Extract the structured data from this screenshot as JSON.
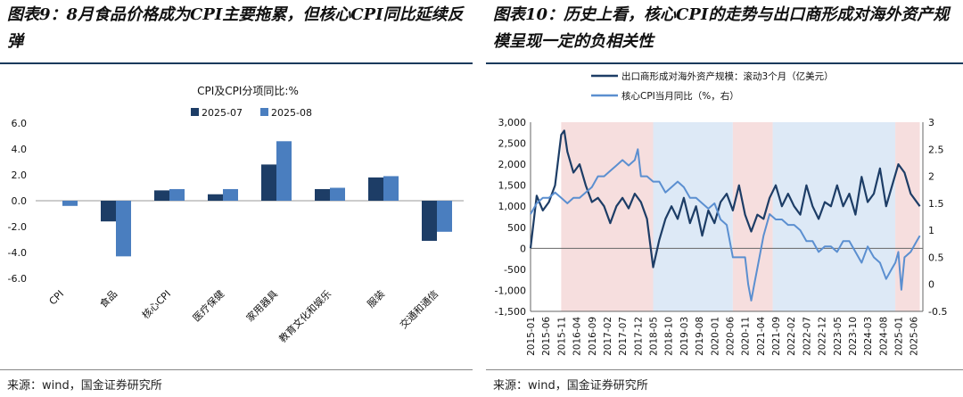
{
  "left": {
    "figure_title": "图表9：8月食品价格成为CPI主要拖累，但核心CPI同比延续反弹",
    "source": "来源：wind，国金证券研究所"
  },
  "right": {
    "figure_title": "图表10：历史上看，核心CPI的走势与出口商形成对海外资产规模呈现一定的负相关性",
    "source": "来源：wind，国金证券研究所"
  },
  "colors": {
    "dark_blue": "#1d3d66",
    "mid_blue": "#4a7ebf",
    "light_blue": "#5b8fd0",
    "pink_band": "#f6dede",
    "blue_band": "#dde9f6",
    "title_rule": "#1a3a5c"
  },
  "chart_data": [
    {
      "type": "bar",
      "title": "CPI及CPI分项同比:%",
      "legend_position": "top",
      "categories": [
        "CPI",
        "食品",
        "核心CPI",
        "医疗保健",
        "家用器具",
        "教育文化和娱乐",
        "服装",
        "交通和通信"
      ],
      "series": [
        {
          "name": "2025-07",
          "color": "#1d3d66",
          "values": [
            0.0,
            -1.6,
            0.8,
            0.5,
            2.8,
            0.9,
            1.8,
            -3.1
          ]
        },
        {
          "name": "2025-08",
          "color": "#4a7ebf",
          "values": [
            -0.4,
            -4.3,
            0.9,
            0.9,
            4.6,
            1.0,
            1.9,
            -2.4
          ]
        }
      ],
      "ylim": [
        -6,
        6
      ],
      "yticks": [
        "6.0",
        "4.0",
        "2.0",
        "0.0",
        "-2.0",
        "-4.0",
        "-6.0"
      ],
      "grid": false
    },
    {
      "type": "line",
      "legend_position": "top-left",
      "legend": [
        "出口商形成对海外资产规模：滚动3个月（亿美元）",
        "核心CPI当月同比（%，右）"
      ],
      "x_ticks": [
        "2015-01",
        "2015-06",
        "2015-11",
        "2016-04",
        "2016-09",
        "2017-02",
        "2017-07",
        "2017-12",
        "2018-05",
        "2018-10",
        "2019-03",
        "2019-08",
        "2020-01",
        "2020-06",
        "2020-11",
        "2021-04",
        "2021-09",
        "2022-02",
        "2022-07",
        "2022-12",
        "2023-05",
        "2023-10",
        "2024-03",
        "2024-08",
        "2025-01",
        "2025-06"
      ],
      "y_left": {
        "ylim": [
          -1500,
          3000
        ],
        "ticks": [
          "3,000",
          "2,500",
          "2,000",
          "1,500",
          "1,000",
          "500",
          "0",
          "-500",
          "-1,000",
          "-1,500"
        ]
      },
      "y_right": {
        "ylim": [
          -0.5,
          3
        ],
        "ticks": [
          "3",
          "2.5",
          "2",
          "1.5",
          "1",
          "0.5",
          "0",
          "-0.5"
        ]
      },
      "shaded_periods": [
        {
          "start": "2015-11",
          "end": "2018-05",
          "color": "pink"
        },
        {
          "start": "2018-05",
          "end": "2020-07",
          "color": "blue"
        },
        {
          "start": "2020-07",
          "end": "2021-08",
          "color": "pink"
        },
        {
          "start": "2021-08",
          "end": "2024-12",
          "color": "blue"
        },
        {
          "start": "2024-12",
          "end": "2025-08",
          "color": "pink"
        }
      ],
      "series": [
        {
          "name": "出口商形成对海外资产规模：滚动3个月（亿美元）",
          "axis": "left",
          "color": "#1d3d66",
          "points": [
            [
              "2015-01",
              0
            ],
            [
              "2015-03",
              1250
            ],
            [
              "2015-05",
              900
            ],
            [
              "2015-07",
              1100
            ],
            [
              "2015-09",
              1500
            ],
            [
              "2015-11",
              2700
            ],
            [
              "2015-12",
              2800
            ],
            [
              "2016-01",
              2300
            ],
            [
              "2016-03",
              1800
            ],
            [
              "2016-05",
              2000
            ],
            [
              "2016-07",
              1500
            ],
            [
              "2016-09",
              1100
            ],
            [
              "2016-11",
              1200
            ],
            [
              "2017-01",
              1000
            ],
            [
              "2017-03",
              600
            ],
            [
              "2017-05",
              1000
            ],
            [
              "2017-07",
              1200
            ],
            [
              "2017-09",
              950
            ],
            [
              "2017-11",
              1300
            ],
            [
              "2018-01",
              1100
            ],
            [
              "2018-03",
              700
            ],
            [
              "2018-05",
              -450
            ],
            [
              "2018-07",
              200
            ],
            [
              "2018-09",
              700
            ],
            [
              "2018-11",
              1000
            ],
            [
              "2019-01",
              700
            ],
            [
              "2019-03",
              1200
            ],
            [
              "2019-05",
              600
            ],
            [
              "2019-07",
              1000
            ],
            [
              "2019-09",
              300
            ],
            [
              "2019-11",
              900
            ],
            [
              "2020-01",
              600
            ],
            [
              "2020-03",
              1100
            ],
            [
              "2020-05",
              1300
            ],
            [
              "2020-07",
              900
            ],
            [
              "2020-09",
              1500
            ],
            [
              "2020-11",
              800
            ],
            [
              "2021-01",
              400
            ],
            [
              "2021-03",
              800
            ],
            [
              "2021-05",
              700
            ],
            [
              "2021-07",
              1200
            ],
            [
              "2021-09",
              1500
            ],
            [
              "2021-11",
              1000
            ],
            [
              "2022-01",
              1300
            ],
            [
              "2022-03",
              1000
            ],
            [
              "2022-05",
              800
            ],
            [
              "2022-07",
              1500
            ],
            [
              "2022-09",
              1000
            ],
            [
              "2022-11",
              700
            ],
            [
              "2023-01",
              1100
            ],
            [
              "2023-03",
              1000
            ],
            [
              "2023-05",
              1500
            ],
            [
              "2023-07",
              1000
            ],
            [
              "2023-09",
              1300
            ],
            [
              "2023-11",
              800
            ],
            [
              "2024-01",
              1700
            ],
            [
              "2024-03",
              1100
            ],
            [
              "2024-05",
              1300
            ],
            [
              "2024-07",
              1900
            ],
            [
              "2024-09",
              1000
            ],
            [
              "2024-11",
              1500
            ],
            [
              "2025-01",
              2000
            ],
            [
              "2025-03",
              1800
            ],
            [
              "2025-05",
              1300
            ],
            [
              "2025-08",
              1000
            ]
          ]
        },
        {
          "name": "核心CPI当月同比（%，右）",
          "axis": "right",
          "color": "#5b8fd0",
          "points": [
            [
              "2015-01",
              1.3
            ],
            [
              "2015-03",
              1.5
            ],
            [
              "2015-05",
              1.6
            ],
            [
              "2015-07",
              1.6
            ],
            [
              "2015-09",
              1.7
            ],
            [
              "2015-11",
              1.6
            ],
            [
              "2016-01",
              1.5
            ],
            [
              "2016-03",
              1.6
            ],
            [
              "2016-05",
              1.6
            ],
            [
              "2016-07",
              1.7
            ],
            [
              "2016-09",
              1.8
            ],
            [
              "2016-11",
              2.0
            ],
            [
              "2017-01",
              2.0
            ],
            [
              "2017-03",
              2.1
            ],
            [
              "2017-05",
              2.2
            ],
            [
              "2017-07",
              2.3
            ],
            [
              "2017-09",
              2.2
            ],
            [
              "2017-11",
              2.3
            ],
            [
              "2017-12",
              2.5
            ],
            [
              "2018-01",
              2.0
            ],
            [
              "2018-03",
              2.0
            ],
            [
              "2018-05",
              1.9
            ],
            [
              "2018-07",
              1.9
            ],
            [
              "2018-09",
              1.7
            ],
            [
              "2018-11",
              1.8
            ],
            [
              "2019-01",
              1.9
            ],
            [
              "2019-03",
              1.8
            ],
            [
              "2019-05",
              1.6
            ],
            [
              "2019-07",
              1.6
            ],
            [
              "2019-09",
              1.5
            ],
            [
              "2019-11",
              1.4
            ],
            [
              "2020-01",
              1.5
            ],
            [
              "2020-03",
              1.2
            ],
            [
              "2020-05",
              1.1
            ],
            [
              "2020-07",
              0.5
            ],
            [
              "2020-09",
              0.5
            ],
            [
              "2020-11",
              0.5
            ],
            [
              "2020-12",
              0.0
            ],
            [
              "2021-01",
              -0.3
            ],
            [
              "2021-02",
              0.0
            ],
            [
              "2021-03",
              0.3
            ],
            [
              "2021-05",
              0.9
            ],
            [
              "2021-07",
              1.3
            ],
            [
              "2021-09",
              1.2
            ],
            [
              "2021-11",
              1.2
            ],
            [
              "2022-01",
              1.1
            ],
            [
              "2022-03",
              1.1
            ],
            [
              "2022-05",
              1.0
            ],
            [
              "2022-07",
              0.8
            ],
            [
              "2022-09",
              0.8
            ],
            [
              "2022-11",
              0.6
            ],
            [
              "2023-01",
              0.7
            ],
            [
              "2023-03",
              0.7
            ],
            [
              "2023-05",
              0.6
            ],
            [
              "2023-07",
              0.8
            ],
            [
              "2023-09",
              0.8
            ],
            [
              "2023-11",
              0.6
            ],
            [
              "2024-01",
              0.4
            ],
            [
              "2024-03",
              0.7
            ],
            [
              "2024-05",
              0.5
            ],
            [
              "2024-07",
              0.4
            ],
            [
              "2024-09",
              0.1
            ],
            [
              "2024-11",
              0.3
            ],
            [
              "2024-12",
              0.4
            ],
            [
              "2025-01",
              0.6
            ],
            [
              "2025-02",
              -0.1
            ],
            [
              "2025-03",
              0.5
            ],
            [
              "2025-05",
              0.6
            ],
            [
              "2025-07",
              0.8
            ],
            [
              "2025-08",
              0.9
            ]
          ]
        }
      ]
    }
  ]
}
